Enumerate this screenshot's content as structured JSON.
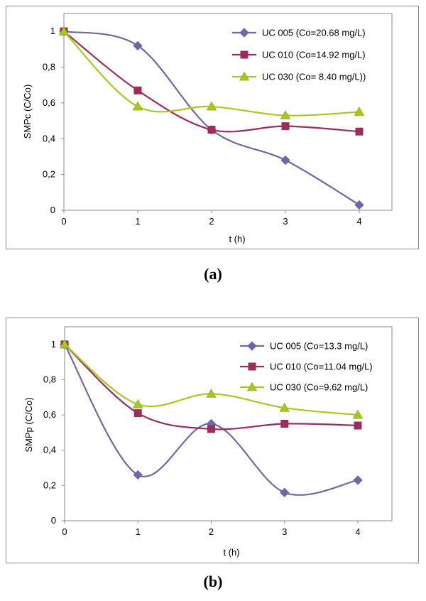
{
  "chart_data": [
    {
      "type": "line",
      "panel_caption": "(a)",
      "xlabel": "t (h)",
      "ylabel": "SMPc (C/Co)",
      "x": [
        0,
        1,
        2,
        3,
        4
      ],
      "x_ticks": [
        "0",
        "1",
        "2",
        "3",
        "4"
      ],
      "y_ticks": [
        "0",
        "0,2",
        "0,4",
        "0,6",
        "0,8",
        "1"
      ],
      "ylim": [
        0,
        1.1
      ],
      "grid": false,
      "legend_position": "top-right",
      "series": [
        {
          "name": "UC 005 (Co=20.68 mg/L)",
          "values": [
            1.0,
            0.92,
            0.45,
            0.28,
            0.03
          ],
          "color": "#6a6aa8",
          "marker": "diamond"
        },
        {
          "name": "UC 010 (Co=14.92 mg/L)",
          "values": [
            1.0,
            0.67,
            0.45,
            0.47,
            0.44
          ],
          "color": "#9c2c5c",
          "marker": "square"
        },
        {
          "name": "UC 030 (Co= 8.40 mg/L))",
          "values": [
            1.0,
            0.58,
            0.58,
            0.53,
            0.55
          ],
          "color": "#a8c81e",
          "marker": "triangle"
        }
      ]
    },
    {
      "type": "line",
      "panel_caption": "(b)",
      "xlabel": "t (h)",
      "ylabel": "SMPp (C/Co)",
      "x": [
        0,
        1,
        2,
        3,
        4
      ],
      "x_ticks": [
        "0",
        "1",
        "2",
        "3",
        "4"
      ],
      "y_ticks": [
        "0",
        "0,2",
        "0,4",
        "0,6",
        "0,8",
        "1"
      ],
      "ylim": [
        0,
        1.1
      ],
      "grid": false,
      "legend_position": "top-right",
      "series": [
        {
          "name": "UC 005 (Co=13.3 mg/L)",
          "values": [
            1.0,
            0.26,
            0.55,
            0.16,
            0.23
          ],
          "color": "#6a6aa8",
          "marker": "diamond"
        },
        {
          "name": "UC 010 (Co=11.04 mg/L)",
          "values": [
            1.0,
            0.61,
            0.52,
            0.55,
            0.54
          ],
          "color": "#9c2c5c",
          "marker": "square"
        },
        {
          "name": "UC 030 (Co=9.62 mg/L)",
          "values": [
            1.0,
            0.66,
            0.72,
            0.64,
            0.6
          ],
          "color": "#a8c81e",
          "marker": "triangle"
        }
      ]
    }
  ]
}
